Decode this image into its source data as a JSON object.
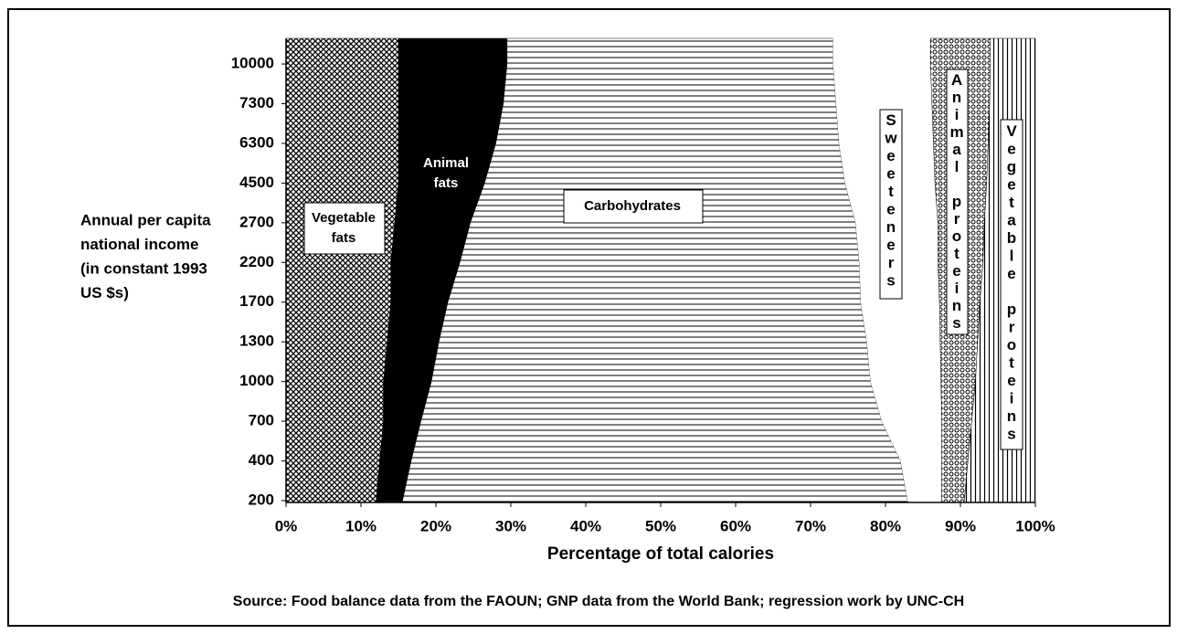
{
  "chart_data": {
    "type": "stacked_area_horizontal",
    "xlabel": "Percentage of total calories",
    "ylabel": [
      "Annual per capita",
      "national income",
      "(in constant 1993",
      "US $s)"
    ],
    "source": "Source: Food balance data from the FAOUN; GNP data from the World Bank; regression work by UNC-CH",
    "categories": [
      "200",
      "400",
      "700",
      "1000",
      "1300",
      "1700",
      "2200",
      "2700",
      "4500",
      "6300",
      "7300",
      "10000"
    ],
    "xlim": [
      0,
      100
    ],
    "xticks": [
      {
        "value": 0,
        "label": "0%"
      },
      {
        "value": 10,
        "label": "10%"
      },
      {
        "value": 20,
        "label": "20%"
      },
      {
        "value": 30,
        "label": "30%"
      },
      {
        "value": 40,
        "label": "40%"
      },
      {
        "value": 50,
        "label": "50%"
      },
      {
        "value": 60,
        "label": "60%"
      },
      {
        "value": 70,
        "label": "70%"
      },
      {
        "value": 80,
        "label": "80%"
      },
      {
        "value": 90,
        "label": "90%"
      },
      {
        "value": 100,
        "label": "100%"
      }
    ],
    "series": [
      {
        "name": "Vegetable fats",
        "pattern": "crosshatch",
        "values": [
          12,
          12.5,
          13,
          13,
          13.5,
          14,
          14,
          14.5,
          15,
          15,
          15,
          15
        ]
      },
      {
        "name": "Animal fats",
        "pattern": "solid",
        "color": "#000000",
        "values": [
          3.5,
          4.2,
          5,
          6.4,
          6.9,
          7.6,
          9.2,
          10.1,
          11.5,
          13,
          14,
          14.5
        ]
      },
      {
        "name": "Carbohydrates",
        "pattern": "horizontal-lines",
        "values": [
          67.5,
          65.3,
          61.5,
          58.6,
          57.1,
          55.1,
          53.3,
          51.4,
          48.1,
          45.8,
          44.4,
          43.5
        ]
      },
      {
        "name": "Sweeteners",
        "pattern": "solid",
        "color": "#ffffff",
        "values": [
          4.5,
          5.5,
          8,
          9.4,
          9.8,
          10.5,
          10.5,
          11,
          12,
          12.6,
          12.8,
          13
        ]
      },
      {
        "name": "Animal proteins",
        "pattern": "dots",
        "values": [
          3,
          3.5,
          4,
          4.6,
          5,
          5.4,
          6,
          6.2,
          6.9,
          7.3,
          7.7,
          8
        ]
      },
      {
        "name": "Vegetable proteins",
        "pattern": "vertical-lines",
        "values": [
          9.5,
          9,
          8.5,
          8,
          7.7,
          7.4,
          7,
          6.8,
          6.5,
          6.3,
          6.1,
          6
        ]
      }
    ]
  }
}
